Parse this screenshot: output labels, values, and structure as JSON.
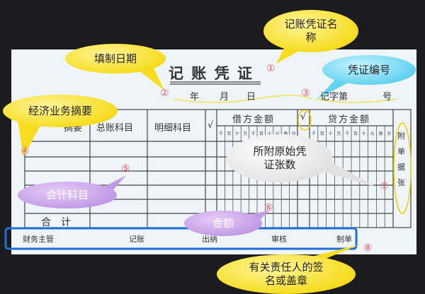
{
  "voucher": {
    "title": "记 账 凭 证",
    "date_labels": [
      "年",
      "月",
      "日"
    ],
    "number_label": "记字第",
    "number_suffix": "号",
    "headers": {
      "summary": "摘要",
      "general_ledger": "总账科目",
      "detail_ledger": "明细科目",
      "check": "√",
      "debit": "借方金额",
      "credit": "贷方金额",
      "attachments": "附单据张"
    },
    "digit_units": [
      "千",
      "百",
      "十",
      "万",
      "千",
      "百",
      "十",
      "元",
      "角",
      "分"
    ],
    "total_label": "合　计",
    "signatures": [
      "财务主管",
      "记账",
      "出纳",
      "审核",
      "制单"
    ]
  },
  "callouts": {
    "title_name": "记账凭证名称",
    "fill_date": "填制日期",
    "voucher_number": "凭证编号",
    "summary": "经济业务摘要",
    "attachments": "所附原始凭证张数",
    "accounts": "会计科目",
    "amount": "金额",
    "signatures": "有关责任人的签名或盖章"
  },
  "markers": [
    "①",
    "②",
    "③",
    "④",
    "⑤",
    "⑥",
    "⑦",
    "⑧"
  ],
  "colors": {
    "yellow": "#f6dd20",
    "cyan": "#64d3f0",
    "purple": "#c29be6",
    "highlight_box": "#1f6fd6",
    "marker": "#e05a6a"
  }
}
